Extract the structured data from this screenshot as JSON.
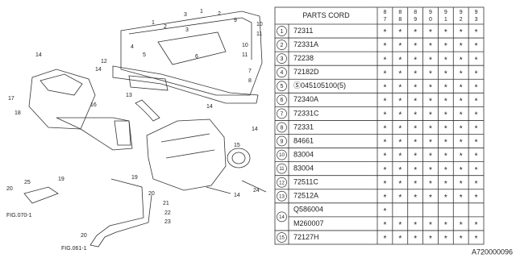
{
  "diagram": {
    "callouts": [
      "3",
      "1",
      "2",
      "9",
      "1",
      "2",
      "3",
      "10",
      "11",
      "10",
      "11",
      "4",
      "5",
      "6",
      "12",
      "7",
      "8",
      "14",
      "14",
      "17",
      "18",
      "13",
      "16",
      "14",
      "14",
      "15",
      "24",
      "14",
      "19",
      "25",
      "20",
      "20",
      "21",
      "22",
      "23",
      "19",
      "FIG.070-1",
      "20",
      "FIG.061-1"
    ]
  },
  "table": {
    "header": "PARTS CORD",
    "years": [
      {
        "top": "8",
        "bottom": "7"
      },
      {
        "top": "8",
        "bottom": "8"
      },
      {
        "top": "8",
        "bottom": "9"
      },
      {
        "top": "9",
        "bottom": "0"
      },
      {
        "top": "9",
        "bottom": "1"
      },
      {
        "top": "9",
        "bottom": "2"
      },
      {
        "top": "9",
        "bottom": "3"
      }
    ],
    "rows": [
      {
        "no": "1",
        "items": [
          {
            "code": "72311",
            "marks": [
              "*",
              "*",
              "*",
              "*",
              "*",
              "*",
              "*"
            ]
          }
        ]
      },
      {
        "no": "2",
        "items": [
          {
            "code": "72331A",
            "marks": [
              "*",
              "*",
              "*",
              "*",
              "*",
              "*",
              "*"
            ]
          }
        ]
      },
      {
        "no": "3",
        "items": [
          {
            "code": "72238",
            "marks": [
              "*",
              "*",
              "*",
              "*",
              "*",
              "*",
              "*"
            ]
          }
        ]
      },
      {
        "no": "4",
        "items": [
          {
            "code": "72182D",
            "marks": [
              "*",
              "*",
              "*",
              "*",
              "*",
              "*",
              "*"
            ]
          }
        ]
      },
      {
        "no": "5",
        "items": [
          {
            "code": "Ⓢ045105100(5)",
            "marks": [
              "*",
              "*",
              "*",
              "*",
              "*",
              "*",
              "*"
            ]
          }
        ]
      },
      {
        "no": "6",
        "items": [
          {
            "code": "72340A",
            "marks": [
              "*",
              "*",
              "*",
              "*",
              "*",
              "*",
              "*"
            ]
          }
        ]
      },
      {
        "no": "7",
        "items": [
          {
            "code": "72331C",
            "marks": [
              "*",
              "*",
              "*",
              "*",
              "*",
              "*",
              "*"
            ]
          }
        ]
      },
      {
        "no": "8",
        "items": [
          {
            "code": "72331",
            "marks": [
              "*",
              "*",
              "*",
              "*",
              "*",
              "*",
              "*"
            ]
          }
        ]
      },
      {
        "no": "9",
        "items": [
          {
            "code": "84661",
            "marks": [
              "*",
              "*",
              "*",
              "*",
              "*",
              "*",
              "*"
            ]
          }
        ]
      },
      {
        "no": "10",
        "items": [
          {
            "code": "83004",
            "marks": [
              "*",
              "*",
              "*",
              "*",
              "*",
              "*",
              "*"
            ]
          }
        ]
      },
      {
        "no": "11",
        "items": [
          {
            "code": "83004",
            "marks": [
              "*",
              "*",
              "*",
              "*",
              "*",
              "*",
              "*"
            ]
          }
        ]
      },
      {
        "no": "12",
        "items": [
          {
            "code": "72511C",
            "marks": [
              "*",
              "*",
              "*",
              "*",
              "*",
              "*",
              "*"
            ]
          }
        ]
      },
      {
        "no": "13",
        "items": [
          {
            "code": "72512A",
            "marks": [
              "*",
              "*",
              "*",
              "*",
              "*",
              "*",
              "*"
            ]
          }
        ]
      },
      {
        "no": "14",
        "items": [
          {
            "code": "Q586004",
            "marks": [
              "*"
            ]
          },
          {
            "code": "M260007",
            "marks": [
              "*",
              "*",
              "*",
              "*",
              "*",
              "*",
              "*"
            ]
          }
        ]
      },
      {
        "no": "15",
        "items": [
          {
            "code": "72127H",
            "marks": [
              "*",
              "*",
              "*",
              "*",
              "*",
              "*",
              "*"
            ]
          }
        ]
      }
    ]
  },
  "footer": {
    "code": "A720000096"
  }
}
